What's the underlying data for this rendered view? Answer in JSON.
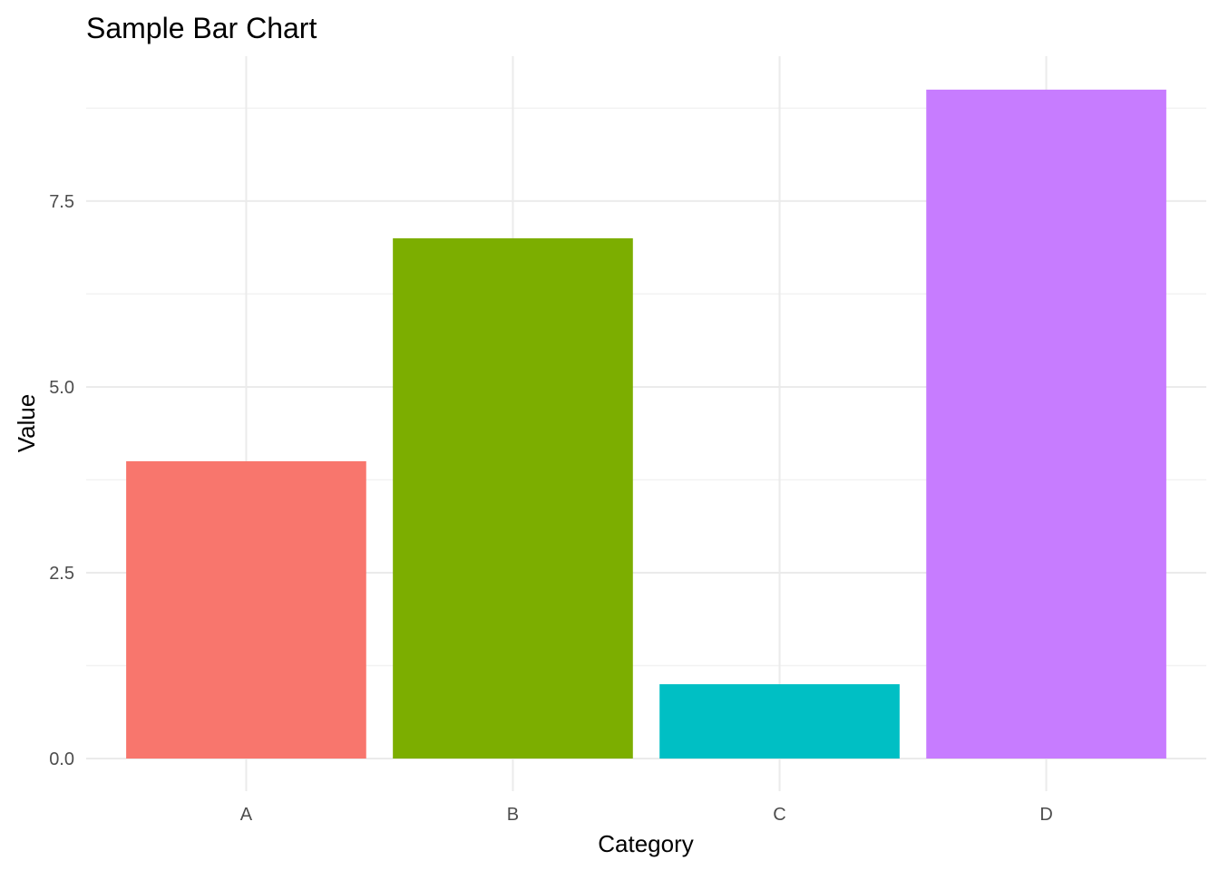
{
  "chart_data": {
    "type": "bar",
    "title": "Sample Bar Chart",
    "xlabel": "Category",
    "ylabel": "Value",
    "categories": [
      "A",
      "B",
      "C",
      "D"
    ],
    "values": [
      4,
      7,
      1,
      9
    ],
    "colors": [
      "#F8766D",
      "#7CAE00",
      "#00BFC4",
      "#C77CFF"
    ],
    "ylim": [
      0,
      9.45
    ],
    "y_ticks": [
      0,
      2.5,
      5,
      7.5
    ],
    "y_tick_labels": [
      "0.0",
      "2.5",
      "5.0",
      "7.5"
    ],
    "grid": true,
    "legend": "none"
  }
}
